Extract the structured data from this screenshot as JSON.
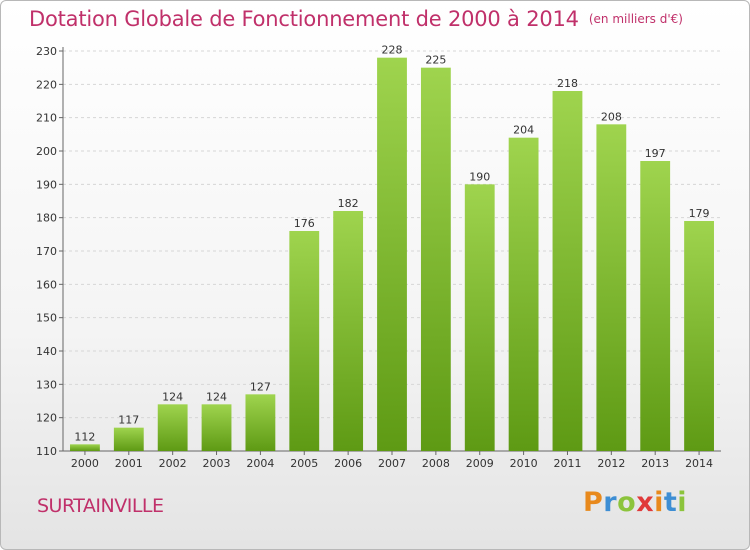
{
  "header": {
    "title": "Dotation Globale de Fonctionnement de 2000 à 2014",
    "unit": "(en milliers d'€)"
  },
  "footer": {
    "city": "SURTAINVILLE",
    "logo": [
      "P",
      "r",
      "o",
      "x",
      "i",
      "t",
      "i"
    ],
    "logo_colors": [
      "#e8891c",
      "#3d8ed4",
      "#8cc43c",
      "#e03a3a",
      "#e8891c",
      "#3d8ed4",
      "#8cc43c"
    ]
  },
  "chart_data": {
    "type": "bar",
    "title": "Dotation Globale de Fonctionnement de 2000 à 2014",
    "subtitle": "(en milliers d'€)",
    "xlabel": "",
    "ylabel": "",
    "categories": [
      "2000",
      "2001",
      "2002",
      "2003",
      "2004",
      "2005",
      "2006",
      "2007",
      "2008",
      "2009",
      "2010",
      "2011",
      "2012",
      "2013",
      "2014"
    ],
    "values": [
      112,
      117,
      124,
      124,
      127,
      176,
      182,
      228,
      225,
      190,
      204,
      218,
      208,
      197,
      179
    ],
    "ylim": [
      110,
      230
    ],
    "yticks": [
      110,
      120,
      130,
      140,
      150,
      160,
      170,
      180,
      190,
      200,
      210,
      220,
      230
    ],
    "grid": true,
    "bar_color_top": "#9fd44e",
    "bar_color_bottom": "#5e9a14"
  }
}
